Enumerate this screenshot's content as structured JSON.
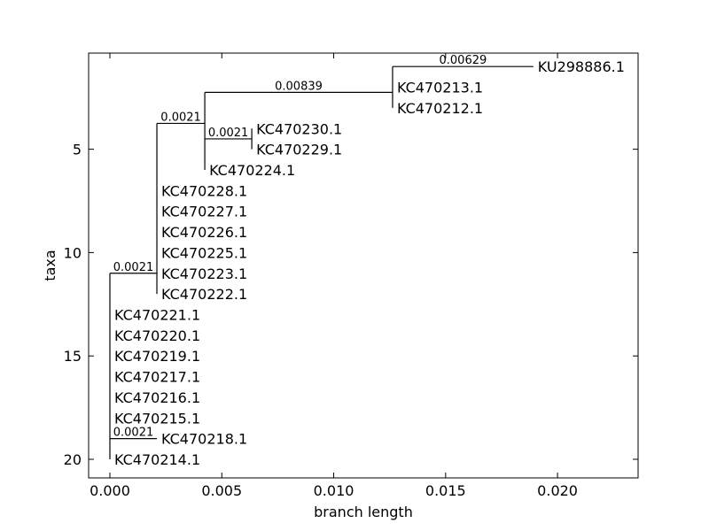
{
  "chart_data": {
    "type": "tree",
    "xlabel": "branch length",
    "ylabel": "taxa",
    "xlim": [
      -0.00095,
      0.0236
    ],
    "ylim": [
      20.9,
      0.35
    ],
    "xticks": [
      0.0,
      0.005,
      0.01,
      0.015,
      0.02
    ],
    "xtick_labels": [
      "0.000",
      "0.005",
      "0.010",
      "0.015",
      "0.020"
    ],
    "yticks": [
      5,
      10,
      15,
      20
    ],
    "ytick_labels": [
      "5",
      "10",
      "15",
      "20"
    ],
    "grid": false,
    "leaves": [
      {
        "name": "KU298886.1",
        "x": 0.01892,
        "y": 1
      },
      {
        "name": "KC470213.1",
        "x": 0.01263,
        "y": 2
      },
      {
        "name": "KC470212.1",
        "x": 0.01263,
        "y": 3
      },
      {
        "name": "KC470230.1",
        "x": 0.00634,
        "y": 4
      },
      {
        "name": "KC470229.1",
        "x": 0.00634,
        "y": 5
      },
      {
        "name": "KC470224.1",
        "x": 0.00424,
        "y": 6
      },
      {
        "name": "KC470228.1",
        "x": 0.0021,
        "y": 7
      },
      {
        "name": "KC470227.1",
        "x": 0.0021,
        "y": 8
      },
      {
        "name": "KC470226.1",
        "x": 0.0021,
        "y": 9
      },
      {
        "name": "KC470225.1",
        "x": 0.0021,
        "y": 10
      },
      {
        "name": "KC470223.1",
        "x": 0.0021,
        "y": 11
      },
      {
        "name": "KC470222.1",
        "x": 0.0021,
        "y": 12
      },
      {
        "name": "KC470221.1",
        "x": 0.0,
        "y": 13
      },
      {
        "name": "KC470220.1",
        "x": 0.0,
        "y": 14
      },
      {
        "name": "KC470219.1",
        "x": 0.0,
        "y": 15
      },
      {
        "name": "KC470217.1",
        "x": 0.0,
        "y": 16
      },
      {
        "name": "KC470216.1",
        "x": 0.0,
        "y": 17
      },
      {
        "name": "KC470215.1",
        "x": 0.0,
        "y": 18
      },
      {
        "name": "KC470218.1",
        "x": 0.0021,
        "y": 19
      },
      {
        "name": "KC470214.1",
        "x": 0.0,
        "y": 20
      }
    ],
    "branches": [
      {
        "x0": 0.0,
        "x1": 0.0021,
        "y": 11.0,
        "label": "0.0021"
      },
      {
        "x0": 0.0021,
        "x1": 0.00424,
        "y": 3.75,
        "label": "0.0021"
      },
      {
        "x0": 0.00424,
        "x1": 0.01263,
        "y": 2.25,
        "label": "0.00839"
      },
      {
        "x0": 0.01263,
        "x1": 0.01892,
        "y": 1.0,
        "label": "0.00629"
      },
      {
        "x0": 0.00424,
        "x1": 0.00634,
        "y": 4.5,
        "label": "0.0021"
      },
      {
        "x0": 0.0,
        "x1": 0.0021,
        "y": 19.0,
        "label": "0.0021"
      }
    ],
    "clades": [
      {
        "x": 0.0,
        "y0": 11.0,
        "y1": 20.0
      },
      {
        "x": 0.0021,
        "y0": 3.75,
        "y1": 12.0
      },
      {
        "x": 0.00424,
        "y0": 2.25,
        "y1": 6.0
      },
      {
        "x": 0.01263,
        "y0": 1.0,
        "y1": 3.0
      },
      {
        "x": 0.00634,
        "y0": 4.0,
        "y1": 5.0
      }
    ]
  }
}
